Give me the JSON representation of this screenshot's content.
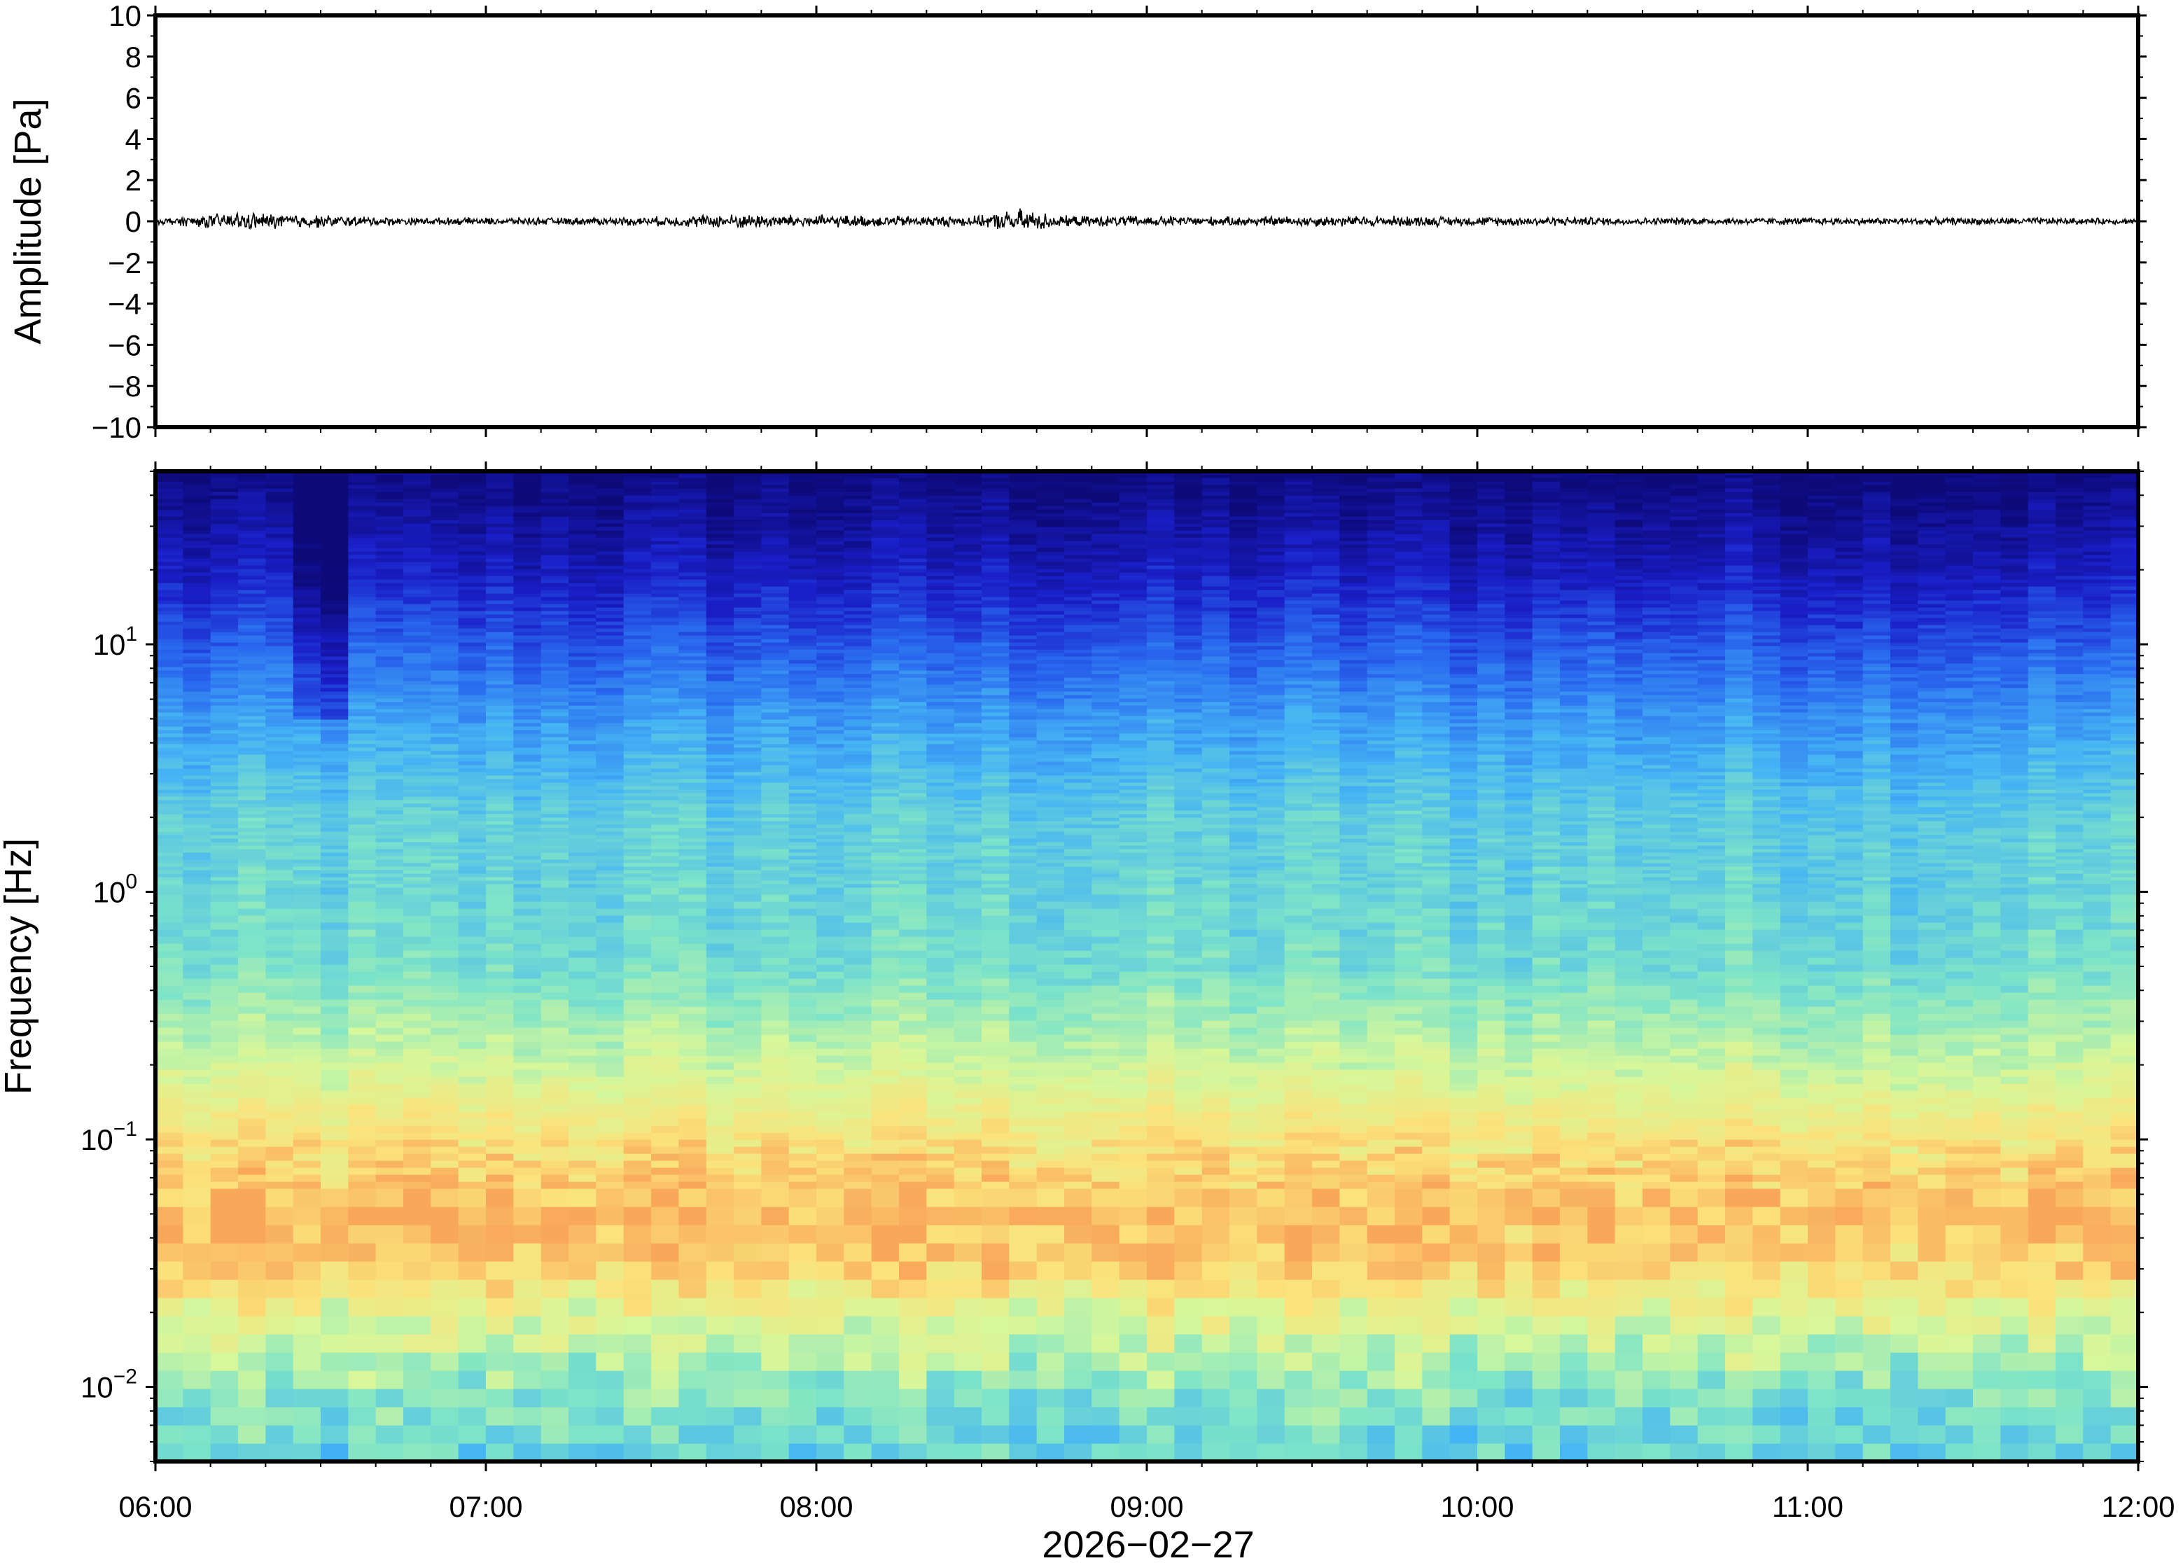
{
  "chart_data": [
    {
      "type": "line",
      "ylabel": "Amplitude [Pa]",
      "ylim": [
        -10,
        10
      ],
      "yticks": [
        -10,
        -8,
        -6,
        -4,
        -2,
        0,
        2,
        4,
        6,
        8,
        10
      ],
      "ytick_labels": [
        "−10",
        "−8",
        "−6",
        "−4",
        "−2",
        "0",
        "2",
        "4",
        "6",
        "8",
        "10"
      ],
      "xlim": [
        "06:00",
        "12:00"
      ],
      "series": [
        {
          "description_values": "waveform centered on 0 Pa with small fluctuations",
          "x": [
            "06:00",
            "06:15",
            "06:30",
            "06:45",
            "07:00",
            "07:15",
            "07:30",
            "07:45",
            "08:00",
            "08:15",
            "08:30",
            "08:37",
            "08:45",
            "09:00",
            "09:15",
            "09:30",
            "09:45",
            "10:00",
            "10:15",
            "10:30",
            "10:45",
            "11:00",
            "11:15",
            "11:30",
            "11:45",
            "12:00"
          ],
          "envelope": [
            0.15,
            0.5,
            0.35,
            0.2,
            0.2,
            0.2,
            0.25,
            0.4,
            0.35,
            0.3,
            0.3,
            0.7,
            0.3,
            0.3,
            0.25,
            0.3,
            0.3,
            0.25,
            0.25,
            0.2,
            0.2,
            0.2,
            0.2,
            0.2,
            0.2,
            0.15
          ]
        }
      ],
      "grid": false
    },
    {
      "type": "heatmap",
      "ylabel": "Frequency [Hz]",
      "xlabel": "2026−02−27",
      "yscale": "log",
      "ylim": [
        0.005,
        50
      ],
      "yticks": [
        0.01,
        0.1,
        1,
        10
      ],
      "ytick_labels": [
        {
          "base": "10",
          "exp": "−2"
        },
        {
          "base": "10",
          "exp": "−1"
        },
        {
          "base": "10",
          "exp": "0"
        },
        {
          "base": "10",
          "exp": "1"
        }
      ],
      "xticks": [
        "06:00",
        "07:00",
        "08:00",
        "09:00",
        "10:00",
        "11:00",
        "12:00"
      ],
      "colormap": [
        "#0d0a7a",
        "#1a1fc9",
        "#2a6cf0",
        "#45b4f4",
        "#7ee4c8",
        "#d6f79a",
        "#fbe27a",
        "#f9a85a"
      ],
      "profile": {
        "freq_hz": [
          50,
          20,
          10,
          5,
          2,
          1,
          0.5,
          0.2,
          0.1,
          0.05,
          0.03,
          0.02,
          0.01,
          0.005
        ],
        "color_index": [
          0.0,
          0.12,
          0.25,
          0.38,
          0.5,
          0.52,
          0.55,
          0.7,
          0.85,
          0.95,
          0.9,
          0.75,
          0.6,
          0.5
        ]
      },
      "grid": false
    }
  ],
  "colors": {
    "waveform": "#000000",
    "frame": "#000000"
  }
}
